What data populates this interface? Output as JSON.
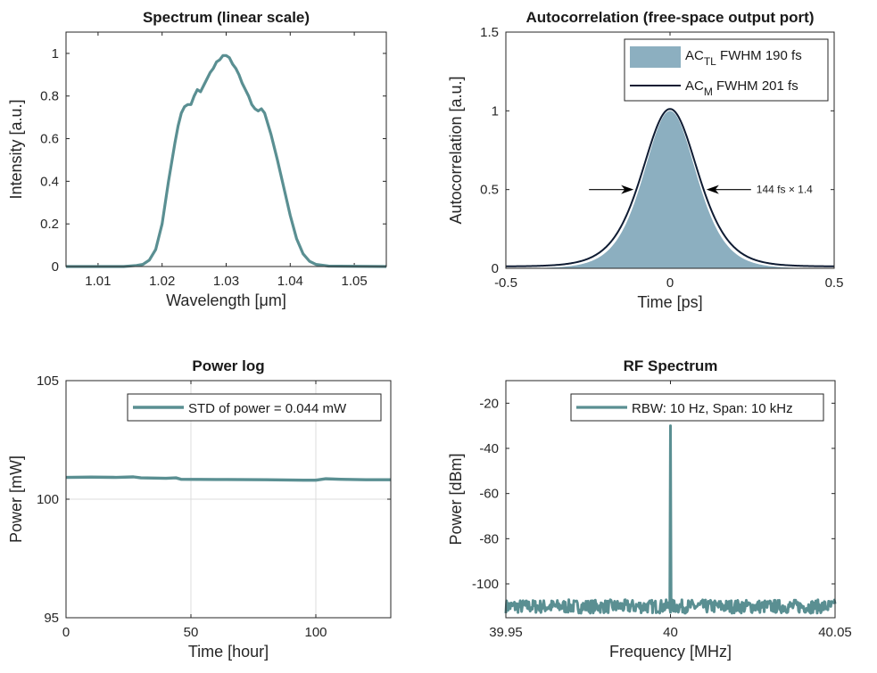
{
  "chart_data": [
    {
      "id": "spectrum",
      "type": "line",
      "title": "Spectrum (linear scale)",
      "xlabel": "Wavelength [μm]",
      "ylabel": "Intensity [a.u.]",
      "xlim": [
        1.005,
        1.055
      ],
      "ylim": [
        0,
        1.1
      ],
      "xticks": [
        1.01,
        1.02,
        1.03,
        1.04,
        1.05
      ],
      "xtick_labels": [
        "1.01",
        "1.02",
        "1.03",
        "1.04",
        "1.05"
      ],
      "yticks": [
        0,
        0.2,
        0.4,
        0.6,
        0.8,
        1
      ],
      "ytick_labels": [
        "0",
        "0.2",
        "0.4",
        "0.6",
        "0.8",
        "1"
      ],
      "grid": false,
      "color": "#5a8f92",
      "series": [
        {
          "x": [
            1.005,
            1.014,
            1.016,
            1.017,
            1.018,
            1.019,
            1.02,
            1.021,
            1.022,
            1.0225,
            1.023,
            1.0235,
            1.024,
            1.0245,
            1.025,
            1.0255,
            1.026,
            1.0265,
            1.027,
            1.0275,
            1.028,
            1.0285,
            1.029,
            1.0295,
            1.03,
            1.0305,
            1.031,
            1.0315,
            1.032,
            1.0325,
            1.033,
            1.0335,
            1.034,
            1.0345,
            1.035,
            1.0355,
            1.036,
            1.037,
            1.038,
            1.039,
            1.04,
            1.041,
            1.042,
            1.043,
            1.044,
            1.046,
            1.055
          ],
          "y": [
            0,
            0,
            0.005,
            0.01,
            0.03,
            0.08,
            0.2,
            0.4,
            0.58,
            0.66,
            0.72,
            0.75,
            0.76,
            0.76,
            0.8,
            0.83,
            0.82,
            0.85,
            0.88,
            0.91,
            0.93,
            0.96,
            0.97,
            0.99,
            0.99,
            0.98,
            0.95,
            0.93,
            0.9,
            0.86,
            0.83,
            0.8,
            0.76,
            0.74,
            0.73,
            0.74,
            0.72,
            0.62,
            0.5,
            0.37,
            0.24,
            0.13,
            0.06,
            0.025,
            0.01,
            0.002,
            0
          ]
        }
      ]
    },
    {
      "id": "autocorrelation",
      "type": "area",
      "title": "Autocorrelation (free-space output port)",
      "xlabel": "Time [ps]",
      "ylabel": "Autocorrelation [a.u.]",
      "xlim": [
        -0.5,
        0.5
      ],
      "ylim": [
        0,
        1.5
      ],
      "xticks": [
        -0.5,
        0,
        0.5
      ],
      "xtick_labels": [
        "-0.5",
        "0",
        "0.5"
      ],
      "yticks": [
        0,
        0.5,
        1,
        1.5
      ],
      "ytick_labels": [
        "0",
        "0.5",
        "1",
        "1.5"
      ],
      "grid": false,
      "legend_placement": "top-right",
      "series": [
        {
          "name_main": "AC",
          "name_sub": "TL",
          "name_rest": " FWHM 190 fs",
          "kind": "area",
          "color": "#8cafc0",
          "fwhm_ps": 0.19,
          "peak": 1
        },
        {
          "name_main": "AC",
          "name_sub": "M",
          "name_rest": " FWHM 201 fs",
          "kind": "line",
          "color": "#0f1c33",
          "fwhm_ps": 0.201,
          "peak": 1
        }
      ],
      "annotation": {
        "text": "144 fs × 1.4",
        "y": 0.5,
        "x_left_tip": -0.1,
        "x_right_tip": 0.1
      }
    },
    {
      "id": "power-log",
      "type": "line",
      "title": "Power log",
      "xlabel": "Time [hour]",
      "ylabel": "Power [mW]",
      "xlim": [
        0,
        130
      ],
      "ylim": [
        95,
        105
      ],
      "xticks": [
        0,
        50,
        100
      ],
      "xtick_labels": [
        "0",
        "50",
        "100"
      ],
      "yticks": [
        95,
        100,
        105
      ],
      "ytick_labels": [
        "95",
        "100",
        "105"
      ],
      "grid": true,
      "legend_placement": "top-right",
      "color": "#5a8f92",
      "series": [
        {
          "name": "STD of power = 0.044 mW",
          "x": [
            0,
            10,
            20,
            27,
            30,
            40,
            44,
            46,
            60,
            80,
            95,
            100,
            104,
            110,
            120,
            130
          ],
          "y": [
            100.92,
            100.93,
            100.92,
            100.94,
            100.9,
            100.88,
            100.9,
            100.84,
            100.83,
            100.82,
            100.8,
            100.8,
            100.86,
            100.84,
            100.82,
            100.82
          ]
        }
      ]
    },
    {
      "id": "rf-spectrum",
      "type": "line",
      "title": "RF Spectrum",
      "xlabel": "Frequency [MHz]",
      "ylabel": "Power [dBm]",
      "xlim": [
        39.95,
        40.05
      ],
      "ylim": [
        -115,
        -10
      ],
      "xticks": [
        39.95,
        40,
        40.05
      ],
      "xtick_labels": [
        "39.95",
        "40",
        "40.05"
      ],
      "yticks": [
        -100,
        -80,
        -60,
        -40,
        -20
      ],
      "ytick_labels": [
        "-100",
        "-80",
        "-60",
        "-40",
        "-20"
      ],
      "grid": false,
      "legend_placement": "top-right",
      "color": "#5a8f92",
      "series": [
        {
          "name": "RBW: 10 Hz, Span: 10 kHz",
          "noise_floor_dbm": -110,
          "noise_amplitude_db": 3,
          "peak_x": 40,
          "peak_dbm": -30
        }
      ]
    }
  ]
}
